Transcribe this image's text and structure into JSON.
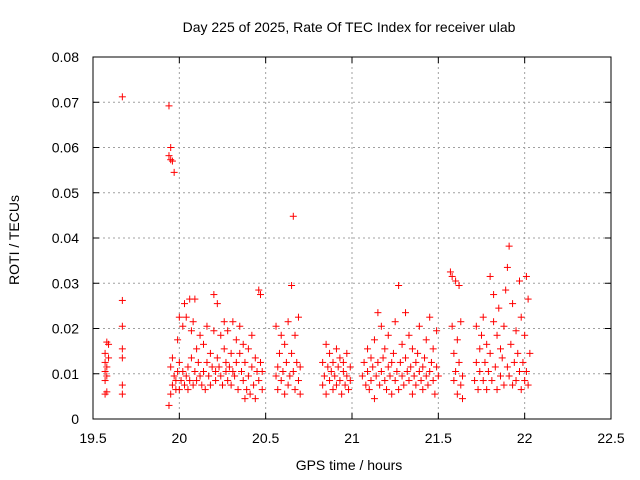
{
  "chart_data": {
    "type": "scatter",
    "title": "Day 225 of 2025, Rate Of TEC Index for receiver ulab",
    "xlabel": "GPS time / hours",
    "ylabel": "ROTI / TECUs",
    "xlim": [
      19.5,
      22.5
    ],
    "ylim": [
      0,
      0.08
    ],
    "xticks": [
      "19.5",
      "20",
      "20.5",
      "21",
      "21.5",
      "22",
      "22.5"
    ],
    "yticks": [
      "0",
      "0.01",
      "0.02",
      "0.03",
      "0.04",
      "0.05",
      "0.06",
      "0.07",
      "0.08"
    ],
    "grid": true,
    "marker": "plus",
    "color": "#ff0000",
    "series": [
      {
        "points": [
          [
            19.57,
            0.0055
          ],
          [
            19.57,
            0.0085
          ],
          [
            19.57,
            0.0105
          ],
          [
            19.57,
            0.0125
          ],
          [
            19.57,
            0.0145
          ],
          [
            19.58,
            0.017
          ],
          [
            19.58,
            0.006
          ],
          [
            19.58,
            0.0095
          ],
          [
            19.58,
            0.0115
          ],
          [
            19.59,
            0.0135
          ],
          [
            19.59,
            0.0165
          ],
          [
            19.67,
            0.0712
          ],
          [
            19.67,
            0.0262
          ],
          [
            19.67,
            0.0205
          ],
          [
            19.67,
            0.0155
          ],
          [
            19.67,
            0.0135
          ],
          [
            19.67,
            0.0075
          ],
          [
            19.67,
            0.0055
          ],
          [
            19.94,
            0.0692
          ],
          [
            19.94,
            0.0582
          ],
          [
            19.95,
            0.06
          ],
          [
            19.95,
            0.0573
          ],
          [
            19.96,
            0.057
          ],
          [
            19.97,
            0.0545
          ],
          [
            19.94,
            0.003
          ],
          [
            19.95,
            0.0055
          ],
          [
            19.96,
            0.0075
          ],
          [
            19.97,
            0.0095
          ],
          [
            19.95,
            0.0115
          ],
          [
            19.96,
            0.0135
          ],
          [
            19.98,
            0.0065
          ],
          [
            19.98,
            0.0085
          ],
          [
            19.99,
            0.0105
          ],
          [
            19.99,
            0.0175
          ],
          [
            20.0,
            0.0225
          ],
          [
            20.0,
            0.0125
          ],
          [
            20.0,
            0.0065
          ],
          [
            20.01,
            0.0085
          ],
          [
            20.02,
            0.0205
          ],
          [
            20.02,
            0.0105
          ],
          [
            20.03,
            0.0075
          ],
          [
            20.03,
            0.0255
          ],
          [
            20.04,
            0.0095
          ],
          [
            20.04,
            0.0225
          ],
          [
            20.05,
            0.0115
          ],
          [
            20.05,
            0.0065
          ],
          [
            20.06,
            0.0085
          ],
          [
            20.06,
            0.0265
          ],
          [
            20.07,
            0.0195
          ],
          [
            20.07,
            0.0135
          ],
          [
            20.08,
            0.0075
          ],
          [
            20.08,
            0.0215
          ],
          [
            20.09,
            0.0105
          ],
          [
            20.09,
            0.0265
          ],
          [
            20.1,
            0.0085
          ],
          [
            20.1,
            0.0155
          ],
          [
            20.11,
            0.0125
          ],
          [
            20.12,
            0.0095
          ],
          [
            20.12,
            0.0185
          ],
          [
            20.13,
            0.0075
          ],
          [
            20.14,
            0.0105
          ],
          [
            20.14,
            0.0165
          ],
          [
            20.15,
            0.0065
          ],
          [
            20.16,
            0.0125
          ],
          [
            20.16,
            0.0205
          ],
          [
            20.17,
            0.0095
          ],
          [
            20.18,
            0.0145
          ],
          [
            20.18,
            0.0075
          ],
          [
            20.19,
            0.0115
          ],
          [
            20.2,
            0.0275
          ],
          [
            20.2,
            0.0195
          ],
          [
            20.21,
            0.0105
          ],
          [
            20.21,
            0.0085
          ],
          [
            20.22,
            0.0255
          ],
          [
            20.22,
            0.0135
          ],
          [
            20.23,
            0.0115
          ],
          [
            20.24,
            0.0185
          ],
          [
            20.24,
            0.0095
          ],
          [
            20.25,
            0.0075
          ],
          [
            20.26,
            0.0155
          ],
          [
            20.26,
            0.0215
          ],
          [
            20.27,
            0.0105
          ],
          [
            20.27,
            0.0125
          ],
          [
            20.28,
            0.0085
          ],
          [
            20.28,
            0.0195
          ],
          [
            20.29,
            0.0115
          ],
          [
            20.3,
            0.0145
          ],
          [
            20.3,
            0.0075
          ],
          [
            20.31,
            0.0215
          ],
          [
            20.31,
            0.0105
          ],
          [
            20.32,
            0.0095
          ],
          [
            20.33,
            0.0175
          ],
          [
            20.33,
            0.0125
          ],
          [
            20.34,
            0.0065
          ],
          [
            20.35,
            0.0145
          ],
          [
            20.35,
            0.0205
          ],
          [
            20.36,
            0.0105
          ],
          [
            20.37,
            0.0085
          ],
          [
            20.37,
            0.0165
          ],
          [
            20.38,
            0.0045
          ],
          [
            20.38,
            0.0125
          ],
          [
            20.39,
            0.0065
          ],
          [
            20.4,
            0.0155
          ],
          [
            20.4,
            0.0095
          ],
          [
            20.41,
            0.0055
          ],
          [
            20.42,
            0.0115
          ],
          [
            20.42,
            0.0185
          ],
          [
            20.43,
            0.0075
          ],
          [
            20.44,
            0.0135
          ],
          [
            20.44,
            0.0045
          ],
          [
            20.45,
            0.0105
          ],
          [
            20.46,
            0.0085
          ],
          [
            20.46,
            0.0285
          ],
          [
            20.47,
            0.0275
          ],
          [
            20.47,
            0.0125
          ],
          [
            20.48,
            0.0065
          ],
          [
            20.48,
            0.0105
          ],
          [
            20.56,
            0.0095
          ],
          [
            20.56,
            0.0205
          ],
          [
            20.57,
            0.0115
          ],
          [
            20.57,
            0.0065
          ],
          [
            20.58,
            0.0145
          ],
          [
            20.59,
            0.0085
          ],
          [
            20.59,
            0.0185
          ],
          [
            20.6,
            0.0105
          ],
          [
            20.61,
            0.0055
          ],
          [
            20.61,
            0.0165
          ],
          [
            20.62,
            0.0125
          ],
          [
            20.63,
            0.0075
          ],
          [
            20.63,
            0.0215
          ],
          [
            20.64,
            0.0095
          ],
          [
            20.65,
            0.0295
          ],
          [
            20.65,
            0.0145
          ],
          [
            20.66,
            0.0448
          ],
          [
            20.66,
            0.0105
          ],
          [
            20.67,
            0.0065
          ],
          [
            20.67,
            0.0185
          ],
          [
            20.68,
            0.0125
          ],
          [
            20.69,
            0.0085
          ],
          [
            20.69,
            0.0225
          ],
          [
            20.7,
            0.0055
          ],
          [
            20.7,
            0.0115
          ],
          [
            20.83,
            0.0075
          ],
          [
            20.83,
            0.0125
          ],
          [
            20.84,
            0.0095
          ],
          [
            20.85,
            0.0165
          ],
          [
            20.85,
            0.0055
          ],
          [
            20.86,
            0.0115
          ],
          [
            20.87,
            0.0085
          ],
          [
            20.87,
            0.0145
          ],
          [
            20.88,
            0.0105
          ],
          [
            20.89,
            0.0065
          ],
          [
            20.89,
            0.0125
          ],
          [
            20.9,
            0.0095
          ],
          [
            20.91,
            0.0155
          ],
          [
            20.91,
            0.0075
          ],
          [
            20.92,
            0.0115
          ],
          [
            20.93,
            0.0085
          ],
          [
            20.93,
            0.0135
          ],
          [
            20.94,
            0.0055
          ],
          [
            20.95,
            0.0105
          ],
          [
            20.95,
            0.0125
          ],
          [
            20.96,
            0.0075
          ],
          [
            20.97,
            0.0095
          ],
          [
            20.97,
            0.0145
          ],
          [
            20.98,
            0.0065
          ],
          [
            20.99,
            0.0115
          ],
          [
            20.99,
            0.0085
          ],
          [
            21.06,
            0.0095
          ],
          [
            21.07,
            0.0125
          ],
          [
            21.08,
            0.0075
          ],
          [
            21.09,
            0.0155
          ],
          [
            21.09,
            0.0105
          ],
          [
            21.1,
            0.0065
          ],
          [
            21.11,
            0.0135
          ],
          [
            21.11,
            0.0085
          ],
          [
            21.12,
            0.0115
          ],
          [
            21.13,
            0.0045
          ],
          [
            21.13,
            0.0175
          ],
          [
            21.14,
            0.0095
          ],
          [
            21.15,
            0.0125
          ],
          [
            21.15,
            0.0235
          ],
          [
            21.16,
            0.0075
          ],
          [
            21.17,
            0.0105
          ],
          [
            21.17,
            0.0205
          ],
          [
            21.18,
            0.0135
          ],
          [
            21.19,
            0.0085
          ],
          [
            21.19,
            0.0155
          ],
          [
            21.2,
            0.0065
          ],
          [
            21.21,
            0.0115
          ],
          [
            21.21,
            0.0185
          ],
          [
            21.22,
            0.0095
          ],
          [
            21.23,
            0.0125
          ],
          [
            21.23,
            0.0055
          ],
          [
            21.24,
            0.0145
          ],
          [
            21.25,
            0.0085
          ],
          [
            21.25,
            0.0215
          ],
          [
            21.26,
            0.0105
          ],
          [
            21.27,
            0.0295
          ],
          [
            21.27,
            0.0065
          ],
          [
            21.28,
            0.0125
          ],
          [
            21.29,
            0.0165
          ],
          [
            21.29,
            0.0095
          ],
          [
            21.3,
            0.0075
          ],
          [
            21.31,
            0.0135
          ],
          [
            21.31,
            0.0235
          ],
          [
            21.32,
            0.0105
          ],
          [
            21.33,
            0.0085
          ],
          [
            21.33,
            0.0185
          ],
          [
            21.34,
            0.0115
          ],
          [
            21.35,
            0.0055
          ],
          [
            21.35,
            0.0155
          ],
          [
            21.36,
            0.0095
          ],
          [
            21.37,
            0.0125
          ],
          [
            21.37,
            0.0075
          ],
          [
            21.38,
            0.0145
          ],
          [
            21.39,
            0.0105
          ],
          [
            21.39,
            0.0205
          ],
          [
            21.4,
            0.0085
          ],
          [
            21.41,
            0.0115
          ],
          [
            21.41,
            0.0065
          ],
          [
            21.42,
            0.0135
          ],
          [
            21.43,
            0.0095
          ],
          [
            21.43,
            0.0175
          ],
          [
            21.44,
            0.0075
          ],
          [
            21.45,
            0.0225
          ],
          [
            21.45,
            0.0105
          ],
          [
            21.46,
            0.0125
          ],
          [
            21.47,
            0.0085
          ],
          [
            21.47,
            0.0155
          ],
          [
            21.48,
            0.0055
          ],
          [
            21.49,
            0.0115
          ],
          [
            21.49,
            0.0195
          ],
          [
            21.5,
            0.0095
          ],
          [
            21.57,
            0.0325
          ],
          [
            21.58,
            0.0315
          ],
          [
            21.58,
            0.0205
          ],
          [
            21.59,
            0.0085
          ],
          [
            21.59,
            0.0145
          ],
          [
            21.6,
            0.0105
          ],
          [
            21.6,
            0.0305
          ],
          [
            21.61,
            0.0055
          ],
          [
            21.61,
            0.0175
          ],
          [
            21.62,
            0.0125
          ],
          [
            21.62,
            0.0295
          ],
          [
            21.63,
            0.0075
          ],
          [
            21.63,
            0.0215
          ],
          [
            21.64,
            0.0095
          ],
          [
            21.64,
            0.0045
          ],
          [
            21.71,
            0.0085
          ],
          [
            21.72,
            0.0125
          ],
          [
            21.72,
            0.0205
          ],
          [
            21.73,
            0.0065
          ],
          [
            21.74,
            0.0155
          ],
          [
            21.74,
            0.0105
          ],
          [
            21.75,
            0.0185
          ],
          [
            21.76,
            0.0085
          ],
          [
            21.76,
            0.0225
          ],
          [
            21.77,
            0.0125
          ],
          [
            21.78,
            0.0065
          ],
          [
            21.78,
            0.0165
          ],
          [
            21.79,
            0.0105
          ],
          [
            21.8,
            0.0315
          ],
          [
            21.8,
            0.0145
          ],
          [
            21.81,
            0.0085
          ],
          [
            21.82,
            0.0215
          ],
          [
            21.82,
            0.0275
          ],
          [
            21.83,
            0.0115
          ],
          [
            21.84,
            0.0065
          ],
          [
            21.84,
            0.0185
          ],
          [
            21.85,
            0.0245
          ],
          [
            21.86,
            0.0095
          ],
          [
            21.86,
            0.0155
          ],
          [
            21.87,
            0.0135
          ],
          [
            21.88,
            0.0075
          ],
          [
            21.88,
            0.0205
          ],
          [
            21.89,
            0.0285
          ],
          [
            21.9,
            0.0115
          ],
          [
            21.9,
            0.0335
          ],
          [
            21.91,
            0.0095
          ],
          [
            21.91,
            0.0382
          ],
          [
            21.92,
            0.0165
          ],
          [
            21.93,
            0.0075
          ],
          [
            21.93,
            0.0255
          ],
          [
            21.94,
            0.0125
          ],
          [
            21.95,
            0.0195
          ],
          [
            21.95,
            0.0085
          ],
          [
            21.96,
            0.0145
          ],
          [
            21.97,
            0.0305
          ],
          [
            21.97,
            0.0105
          ],
          [
            21.98,
            0.0065
          ],
          [
            21.98,
            0.0225
          ],
          [
            21.99,
            0.0125
          ],
          [
            22.0,
            0.0085
          ],
          [
            22.0,
            0.0185
          ],
          [
            22.01,
            0.0315
          ],
          [
            22.01,
            0.0105
          ],
          [
            22.02,
            0.0265
          ],
          [
            22.02,
            0.0075
          ],
          [
            22.03,
            0.0145
          ]
        ]
      }
    ]
  }
}
